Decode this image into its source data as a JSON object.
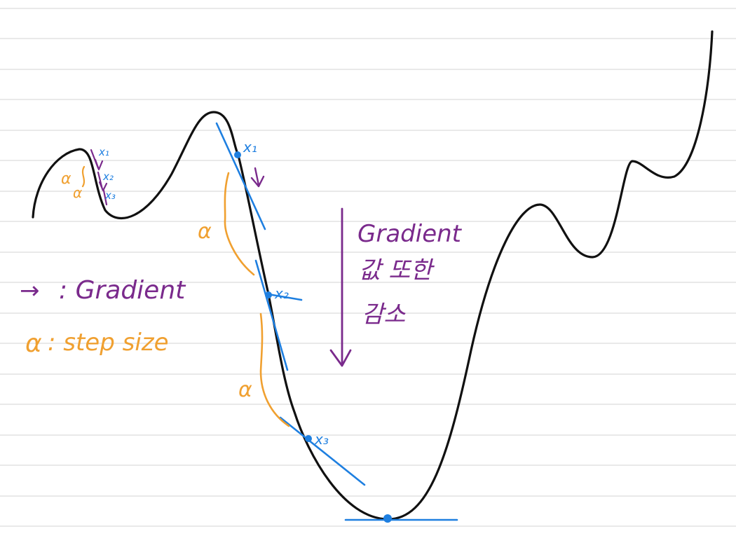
{
  "colors": {
    "paper": "#ffffff",
    "rule_line": "#dcdcdc",
    "curve": "#111111",
    "tangent": "#1e7fe0",
    "gradient_arrow": "#7a2a8c",
    "step_size": "#f0a030"
  },
  "points": {
    "x1": "x₁",
    "x2": "x₂",
    "x3": "x₃"
  },
  "legend": {
    "gradient_arrow_symbol": "→",
    "gradient_text": ": Gradient",
    "step_symbol": "α",
    "step_text": ": step size"
  },
  "step_marks": {
    "alpha": "α"
  },
  "annotation": {
    "line1": "Gradient",
    "line2": "값 또한",
    "line3": "감소"
  }
}
